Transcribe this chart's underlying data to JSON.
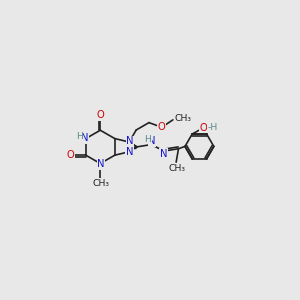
{
  "bg_color": "#e8e8e8",
  "bond_color": "#222222",
  "n_color": "#1414cc",
  "o_color": "#cc0000",
  "h_color": "#5a8a8a",
  "fig_width": 3.0,
  "fig_height": 3.0,
  "dpi": 100,
  "font_size": 7.2,
  "bond_lw": 1.2,
  "xlim": [
    0,
    10
  ],
  "ylim": [
    0,
    10
  ]
}
